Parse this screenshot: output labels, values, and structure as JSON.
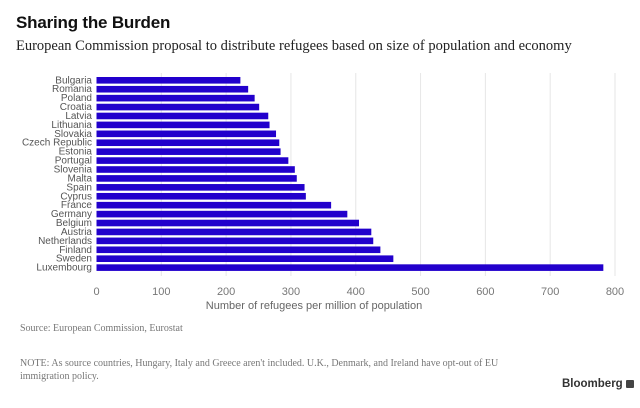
{
  "header": {
    "title": "Sharing the Burden",
    "subtitle": "European Commission proposal to distribute refugees based on size of population and economy"
  },
  "chart_data": {
    "type": "bar",
    "orientation": "horizontal",
    "title": "Sharing the Burden",
    "subtitle": "European Commission proposal to distribute refugees based on size of population and economy",
    "xlabel": "Number of refugees per million of population",
    "ylabel": "",
    "xlim": [
      0,
      800
    ],
    "xticks": [
      0,
      100,
      200,
      300,
      400,
      500,
      600,
      700,
      800
    ],
    "xtick_labels": [
      "0",
      "100",
      "200",
      "300",
      "400",
      "500",
      "600",
      "700",
      "800"
    ],
    "grid": "vertical",
    "legend": "none",
    "bar_color": "#2200cc",
    "categories": [
      "Bulgaria",
      "Romania",
      "Poland",
      "Croatia",
      "Latvia",
      "Lithuania",
      "Slovakia",
      "Czech Republic",
      "Estonia",
      "Portugal",
      "Slovenia",
      "Malta",
      "Spain",
      "Cyprus",
      "France",
      "Germany",
      "Belgium",
      "Austria",
      "Netherlands",
      "Finland",
      "Sweden",
      "Luxembourg"
    ],
    "values": [
      222,
      234,
      244,
      251,
      265,
      267,
      277,
      282,
      284,
      296,
      306,
      309,
      321,
      323,
      362,
      387,
      405,
      424,
      427,
      438,
      458,
      782
    ]
  },
  "footer": {
    "source": "Source: European Commission, Eurostat",
    "note": "NOTE: As source countries, Hungary, Italy and Greece aren't included. U.K., Denmark, and Ireland have opt-out of EU immigration policy.",
    "brand": "Bloomberg",
    "brand_icon": "bloomberg-logo-icon"
  }
}
